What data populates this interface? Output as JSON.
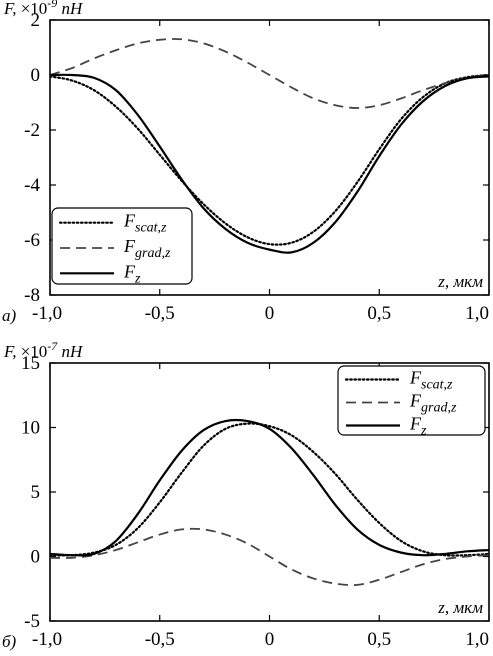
{
  "chart_data": [
    {
      "type": "line",
      "panel_label": "a)",
      "ylabel_prefix": "F,",
      "ylabel_scale": "×10",
      "ylabel_exp": "-9",
      "ylabel_unit": "nH",
      "xlabel": "z, мкм",
      "xlim": [
        -1.0,
        1.0
      ],
      "ylim": [
        -8,
        2
      ],
      "xticks": [
        -1.0,
        -0.5,
        0,
        0.5,
        1.0
      ],
      "xtick_labels": [
        "-1,0",
        "-0,5",
        "0",
        "0,5",
        "1,0"
      ],
      "yticks": [
        -8,
        -6,
        -4,
        -2,
        0,
        2
      ],
      "ytick_labels": [
        "-8",
        "-6",
        "-4",
        "-2",
        "0",
        "2"
      ],
      "legend_position": "bottom-left",
      "x": [
        -1.0,
        -0.9,
        -0.8,
        -0.7,
        -0.6,
        -0.5,
        -0.4,
        -0.3,
        -0.2,
        -0.1,
        0.0,
        0.1,
        0.2,
        0.3,
        0.4,
        0.5,
        0.6,
        0.7,
        0.8,
        0.9,
        1.0
      ],
      "series": [
        {
          "name_main": "F",
          "name_sub": "scat,z",
          "style": "dotted",
          "values": [
            -0.05,
            -0.2,
            -0.55,
            -1.15,
            -1.95,
            -2.9,
            -3.85,
            -4.7,
            -5.4,
            -5.9,
            -6.15,
            -6.1,
            -5.7,
            -4.95,
            -3.9,
            -2.7,
            -1.6,
            -0.8,
            -0.3,
            -0.08,
            0.0
          ]
        },
        {
          "name_main": "F",
          "name_sub": "grad,z",
          "style": "dashed",
          "values": [
            0.0,
            0.25,
            0.6,
            0.9,
            1.15,
            1.28,
            1.3,
            1.15,
            0.85,
            0.45,
            0.0,
            -0.45,
            -0.85,
            -1.1,
            -1.2,
            -1.1,
            -0.85,
            -0.55,
            -0.3,
            -0.1,
            0.0
          ]
        },
        {
          "name_main": "F",
          "name_sub": "z",
          "style": "solid",
          "values": [
            0.0,
            0.0,
            -0.1,
            -0.55,
            -1.45,
            -2.6,
            -3.8,
            -4.85,
            -5.6,
            -6.1,
            -6.35,
            -6.45,
            -6.1,
            -5.35,
            -4.25,
            -2.95,
            -1.8,
            -0.95,
            -0.4,
            -0.12,
            -0.05
          ]
        }
      ]
    },
    {
      "type": "line",
      "panel_label": "б)",
      "ylabel_prefix": "F,",
      "ylabel_scale": "×10",
      "ylabel_exp": "-7",
      "ylabel_unit": "nH",
      "xlabel": "z, мкм",
      "xlim": [
        -1.0,
        1.0
      ],
      "ylim": [
        -5,
        15
      ],
      "xticks": [
        -1.0,
        -0.5,
        0,
        0.5,
        1.0
      ],
      "xtick_labels": [
        "-1,0",
        "-0,5",
        "0",
        "0,5",
        "1,0"
      ],
      "yticks": [
        -5,
        0,
        5,
        10,
        15
      ],
      "ytick_labels": [
        "-5",
        "0",
        "5",
        "10",
        "15"
      ],
      "legend_position": "top-right",
      "x": [
        -1.0,
        -0.9,
        -0.8,
        -0.7,
        -0.6,
        -0.5,
        -0.4,
        -0.3,
        -0.2,
        -0.1,
        0.0,
        0.1,
        0.2,
        0.3,
        0.4,
        0.5,
        0.6,
        0.7,
        0.8,
        0.9,
        1.0
      ],
      "series": [
        {
          "name_main": "F",
          "name_sub": "scat,z",
          "style": "dotted",
          "values": [
            0.1,
            0.1,
            0.3,
            0.9,
            2.2,
            4.2,
            6.5,
            8.6,
            9.9,
            10.3,
            10.1,
            9.4,
            8.1,
            6.4,
            4.4,
            2.6,
            1.2,
            0.4,
            0.1,
            0.1,
            0.2
          ]
        },
        {
          "name_main": "F",
          "name_sub": "grad,z",
          "style": "dashed",
          "values": [
            -0.1,
            -0.1,
            0.1,
            0.5,
            1.1,
            1.7,
            2.1,
            2.1,
            1.7,
            1.0,
            0.0,
            -1.0,
            -1.7,
            -2.1,
            -2.2,
            -1.8,
            -1.2,
            -0.6,
            -0.2,
            0.0,
            0.1
          ]
        },
        {
          "name_main": "F",
          "name_sub": "z",
          "style": "solid",
          "values": [
            0.2,
            0.1,
            0.2,
            1.2,
            3.3,
            5.9,
            8.2,
            9.8,
            10.5,
            10.5,
            9.9,
            8.4,
            6.3,
            4.0,
            2.1,
            0.9,
            0.3,
            0.1,
            0.2,
            0.4,
            0.5
          ]
        }
      ]
    }
  ]
}
